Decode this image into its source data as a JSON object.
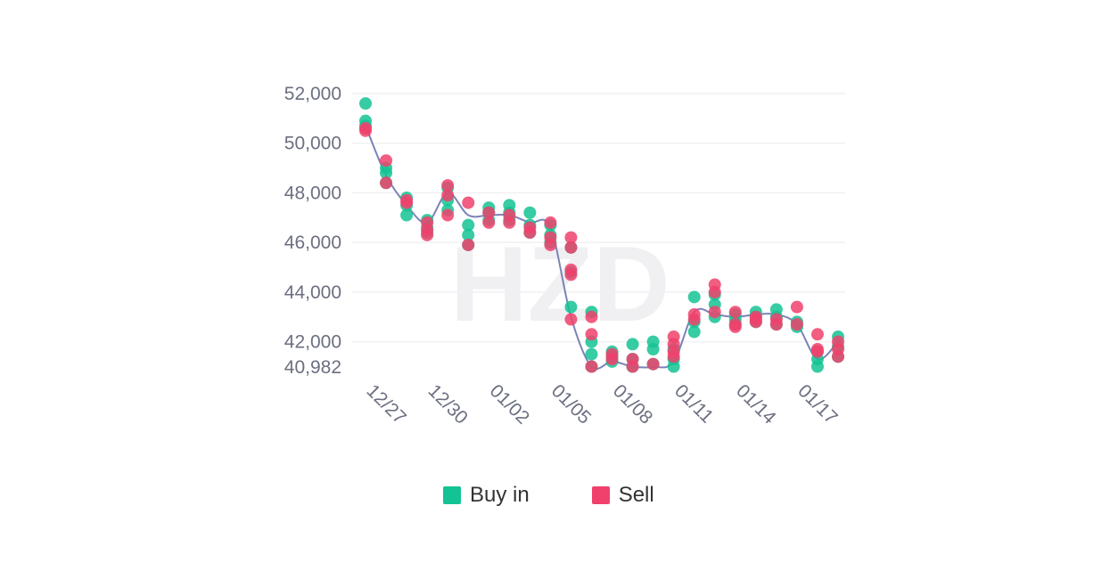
{
  "chart_data": {
    "type": "scatter",
    "ylim": [
      40982,
      52000
    ],
    "yticks": [
      "52,000",
      "50,000",
      "48,000",
      "46,000",
      "44,000",
      "42,000",
      "40,982"
    ],
    "ytick_values": [
      52000,
      50000,
      48000,
      46000,
      44000,
      42000,
      40982
    ],
    "xticks": [
      "12/27",
      "12/30",
      "01/02",
      "01/05",
      "01/08",
      "01/11",
      "01/14",
      "01/17"
    ],
    "x_range": [
      0,
      23
    ],
    "grid": true,
    "legend": "bottom",
    "watermark": "HZD",
    "trend_line": {
      "x": [
        0,
        1,
        2,
        3,
        4,
        5,
        6,
        7,
        8,
        9,
        10,
        11,
        12,
        13,
        14,
        15,
        16,
        17,
        18,
        19,
        20,
        21,
        22,
        23
      ],
      "y": [
        50700,
        48700,
        47500,
        46800,
        48000,
        47100,
        47100,
        47100,
        46800,
        46600,
        43000,
        41000,
        41200,
        41000,
        40982,
        41200,
        43200,
        43100,
        43000,
        43100,
        43100,
        42700,
        41300,
        42000
      ]
    },
    "series": [
      {
        "name": "Buy in",
        "color": "#14c393",
        "points": [
          [
            0,
            51600
          ],
          [
            0,
            50900
          ],
          [
            0,
            50700
          ],
          [
            1,
            49000
          ],
          [
            1,
            48800
          ],
          [
            1,
            48400
          ],
          [
            2,
            47800
          ],
          [
            2,
            47500
          ],
          [
            2,
            47100
          ],
          [
            3,
            46900
          ],
          [
            3,
            46600
          ],
          [
            3,
            46400
          ],
          [
            4,
            48200
          ],
          [
            4,
            47700
          ],
          [
            4,
            47300
          ],
          [
            5,
            46700
          ],
          [
            5,
            46300
          ],
          [
            5,
            45900
          ],
          [
            6,
            47400
          ],
          [
            6,
            47200
          ],
          [
            6,
            46900
          ],
          [
            7,
            47500
          ],
          [
            7,
            47200
          ],
          [
            7,
            46900
          ],
          [
            8,
            47200
          ],
          [
            8,
            46700
          ],
          [
            8,
            46400
          ],
          [
            9,
            46700
          ],
          [
            9,
            46300
          ],
          [
            9,
            46000
          ],
          [
            10,
            45800
          ],
          [
            10,
            44800
          ],
          [
            10,
            43400
          ],
          [
            11,
            43200
          ],
          [
            11,
            42000
          ],
          [
            11,
            41500
          ],
          [
            11,
            41000
          ],
          [
            12,
            41600
          ],
          [
            12,
            41400
          ],
          [
            12,
            41200
          ],
          [
            13,
            41900
          ],
          [
            13,
            41300
          ],
          [
            13,
            41000
          ],
          [
            14,
            42000
          ],
          [
            14,
            41700
          ],
          [
            14,
            41100
          ],
          [
            15,
            41700
          ],
          [
            15,
            41300
          ],
          [
            15,
            41000
          ],
          [
            16,
            43800
          ],
          [
            16,
            42800
          ],
          [
            16,
            42400
          ],
          [
            17,
            43900
          ],
          [
            17,
            43500
          ],
          [
            17,
            43000
          ],
          [
            18,
            43100
          ],
          [
            18,
            42900
          ],
          [
            18,
            42700
          ],
          [
            19,
            43200
          ],
          [
            19,
            43000
          ],
          [
            19,
            42800
          ],
          [
            20,
            43300
          ],
          [
            20,
            43000
          ],
          [
            20,
            42700
          ],
          [
            21,
            42800
          ],
          [
            21,
            42600
          ],
          [
            22,
            41600
          ],
          [
            22,
            41300
          ],
          [
            22,
            41000
          ],
          [
            23,
            42200
          ],
          [
            23,
            41800
          ],
          [
            23,
            41400
          ]
        ]
      },
      {
        "name": "Sell",
        "color": "#f0416c",
        "points": [
          [
            0,
            50600
          ],
          [
            0,
            50500
          ],
          [
            1,
            49300
          ],
          [
            1,
            48400
          ],
          [
            2,
            47700
          ],
          [
            2,
            47600
          ],
          [
            3,
            46800
          ],
          [
            3,
            46500
          ],
          [
            3,
            46300
          ],
          [
            4,
            48300
          ],
          [
            4,
            47900
          ],
          [
            4,
            47100
          ],
          [
            5,
            47600
          ],
          [
            5,
            45900
          ],
          [
            6,
            47200
          ],
          [
            6,
            46800
          ],
          [
            7,
            47100
          ],
          [
            7,
            46800
          ],
          [
            8,
            46600
          ],
          [
            8,
            46400
          ],
          [
            9,
            46800
          ],
          [
            9,
            46200
          ],
          [
            9,
            45900
          ],
          [
            10,
            46200
          ],
          [
            10,
            45800
          ],
          [
            10,
            44900
          ],
          [
            10,
            44700
          ],
          [
            10,
            42900
          ],
          [
            11,
            43000
          ],
          [
            11,
            42300
          ],
          [
            11,
            41000
          ],
          [
            12,
            41500
          ],
          [
            12,
            41300
          ],
          [
            13,
            41300
          ],
          [
            13,
            41000
          ],
          [
            14,
            41100
          ],
          [
            15,
            42200
          ],
          [
            15,
            41900
          ],
          [
            15,
            41600
          ],
          [
            15,
            41400
          ],
          [
            16,
            42900
          ],
          [
            16,
            43100
          ],
          [
            17,
            44300
          ],
          [
            17,
            44000
          ],
          [
            17,
            43200
          ],
          [
            18,
            43200
          ],
          [
            18,
            42700
          ],
          [
            18,
            42600
          ],
          [
            19,
            43000
          ],
          [
            19,
            42900
          ],
          [
            19,
            42800
          ],
          [
            20,
            42900
          ],
          [
            20,
            42700
          ],
          [
            21,
            43400
          ],
          [
            21,
            42700
          ],
          [
            22,
            42300
          ],
          [
            22,
            41700
          ],
          [
            22,
            41600
          ],
          [
            23,
            42000
          ],
          [
            23,
            41700
          ],
          [
            23,
            41400
          ]
        ]
      }
    ]
  }
}
